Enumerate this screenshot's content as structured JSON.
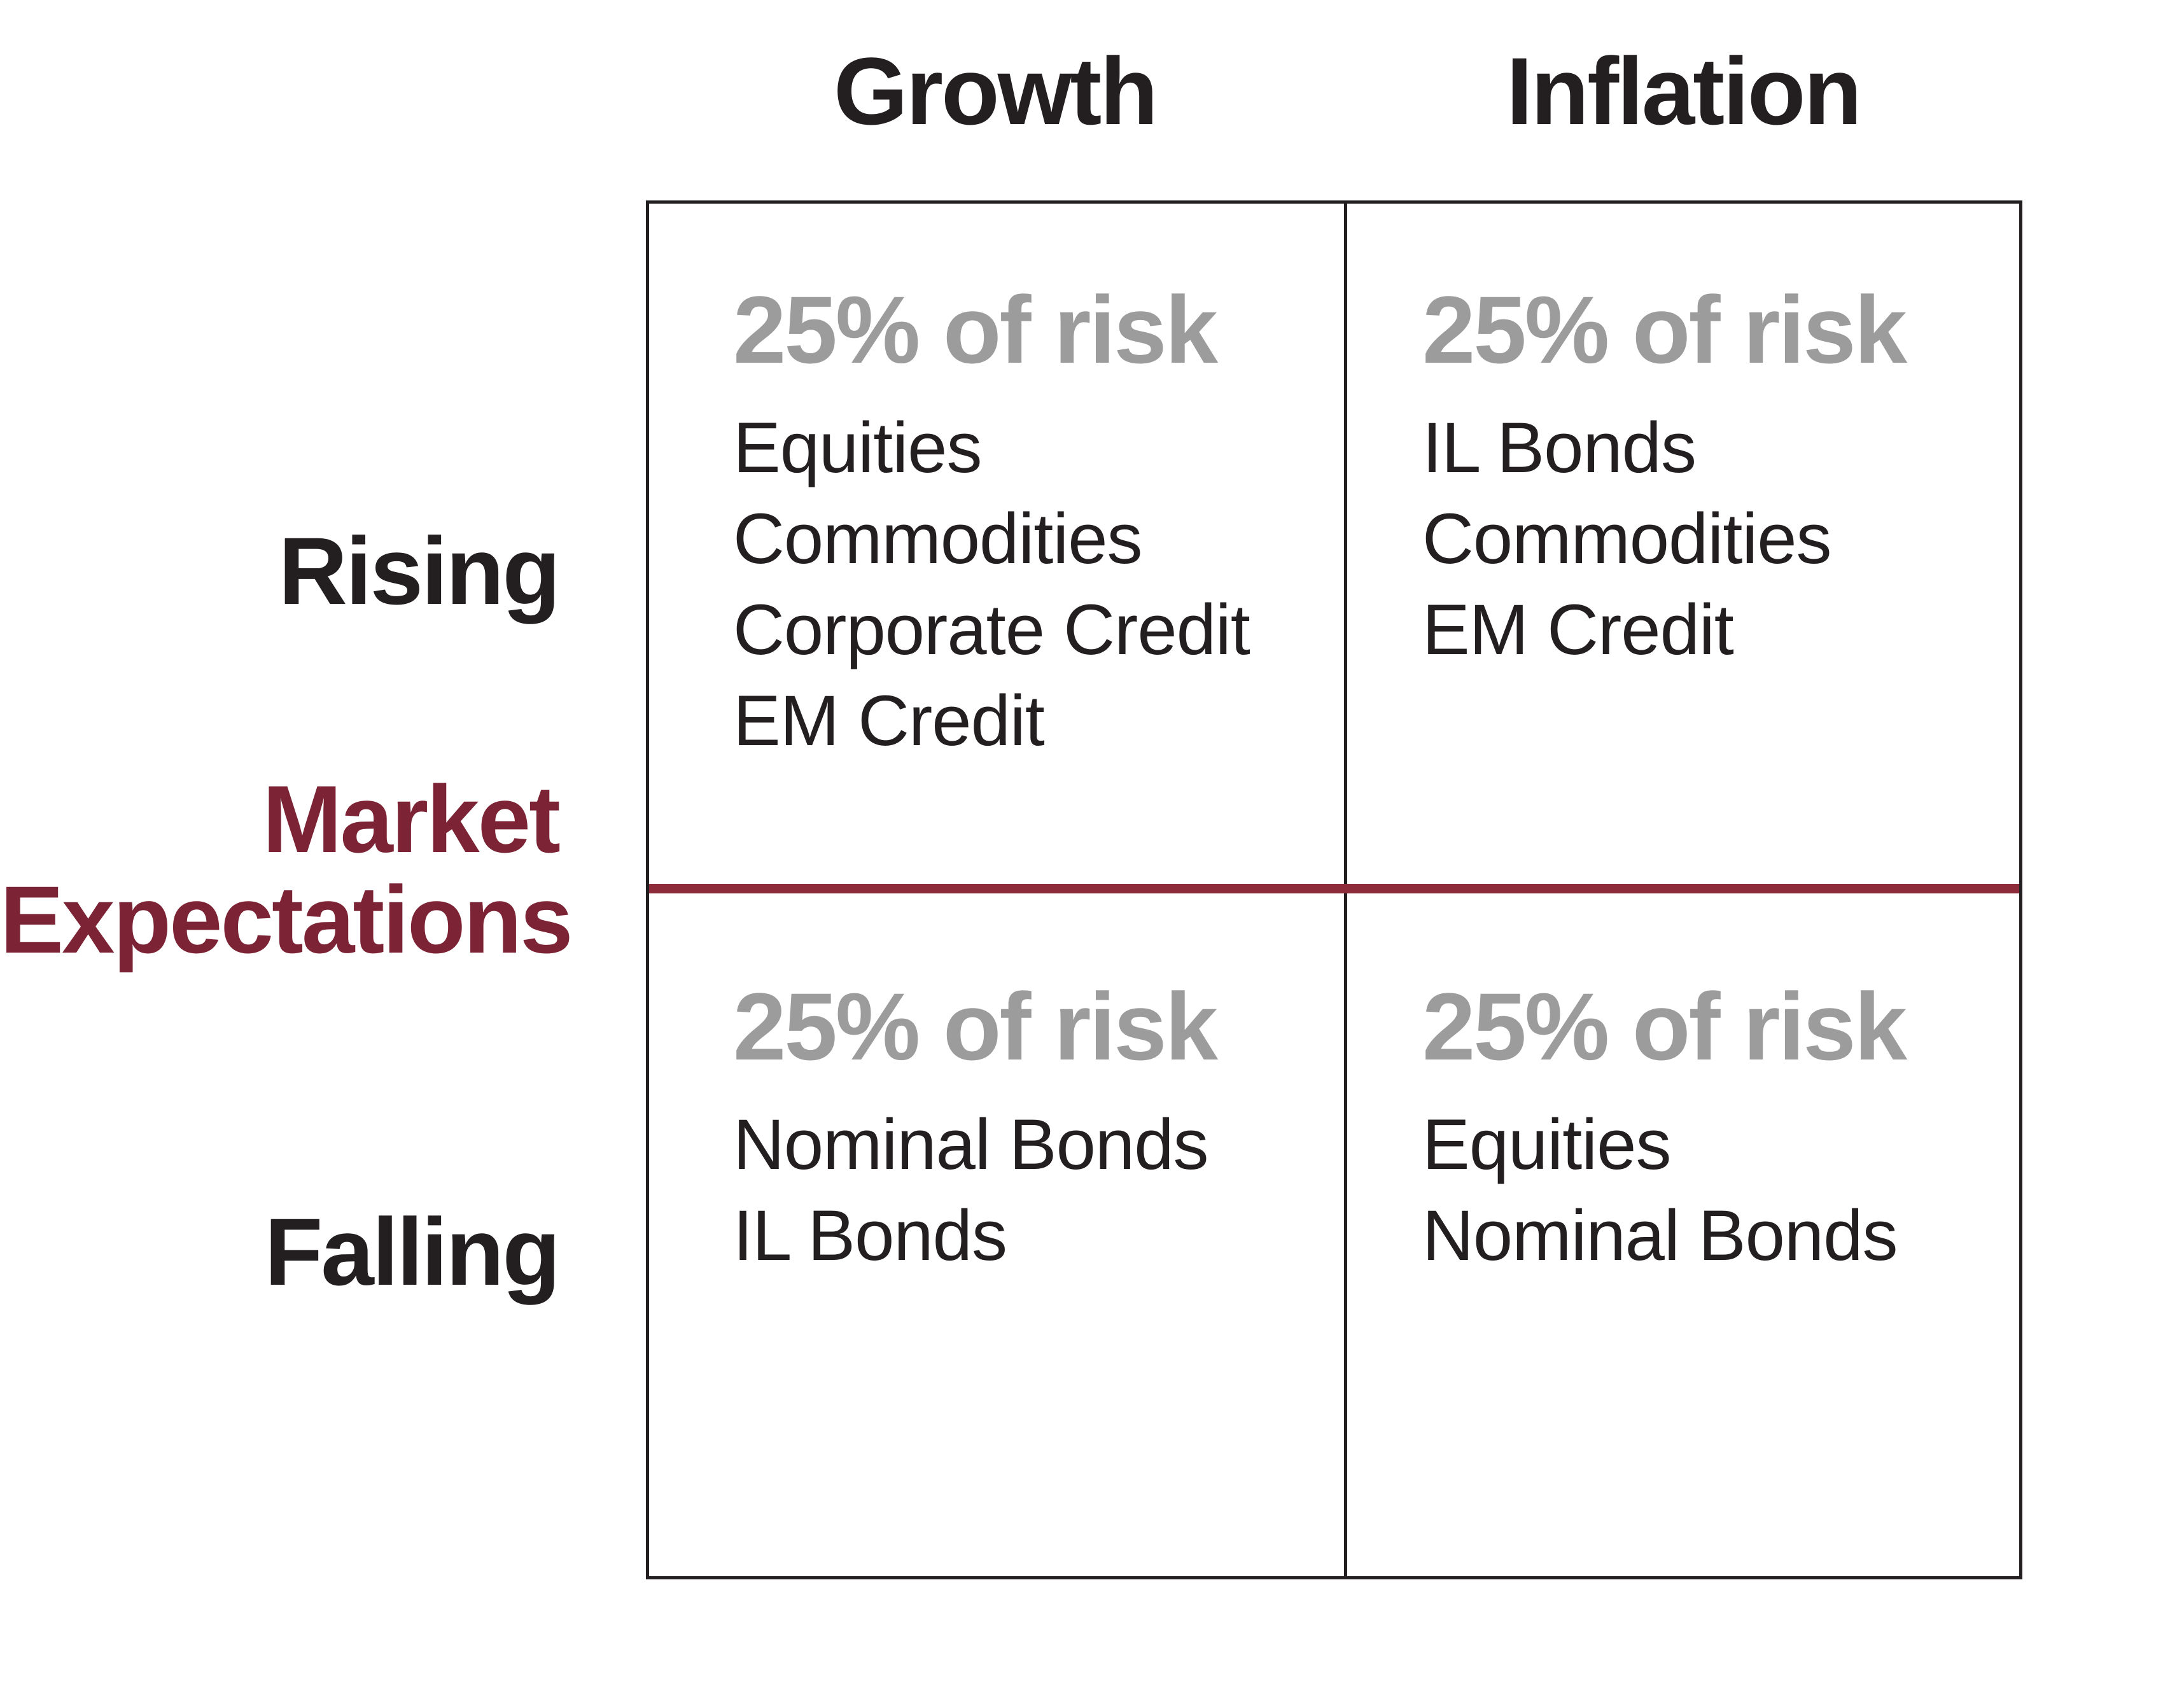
{
  "matrix": {
    "column_headers": [
      {
        "label": "Growth"
      },
      {
        "label": "Inflation"
      }
    ],
    "row_labels": {
      "rising": "Rising",
      "falling": "Falling"
    },
    "axis_label": {
      "line1": "Market",
      "line2": "Expectations"
    },
    "quadrants": [
      {
        "id": "rising-growth",
        "risk_label": "25% of risk",
        "assets": [
          "Equities",
          "Commodities",
          "Corporate Credit",
          "EM Credit"
        ]
      },
      {
        "id": "rising-inflation",
        "risk_label": "25% of risk",
        "assets": [
          "IL Bonds",
          "Commodities",
          "EM Credit"
        ]
      },
      {
        "id": "falling-growth",
        "risk_label": "25% of risk",
        "assets": [
          "Nominal Bonds",
          "IL Bonds"
        ]
      },
      {
        "id": "falling-inflation",
        "risk_label": "25% of risk",
        "assets": [
          "Equities",
          "Nominal Bonds"
        ]
      }
    ],
    "colors": {
      "text_black": "#231F20",
      "risk_gray": "#9C9C9C",
      "axis_maroon_text": "#7C2435",
      "divider_maroon_line": "#8D2B3A",
      "grid_black": "#231F20"
    }
  }
}
